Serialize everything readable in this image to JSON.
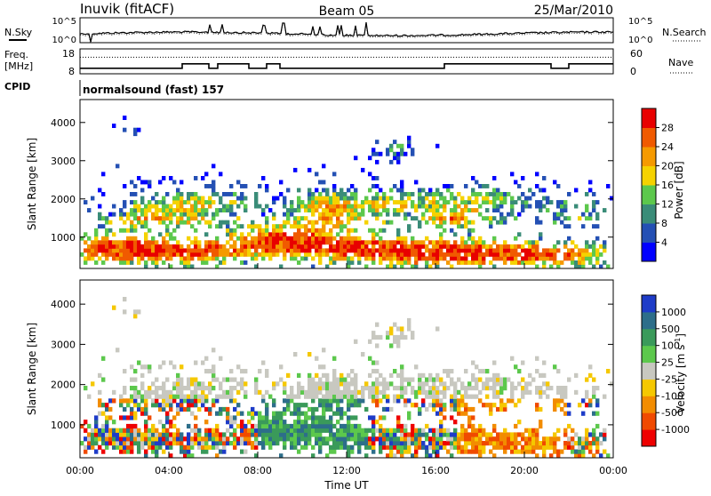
{
  "header": {
    "station": "Inuvik (fitACF)",
    "beam": "Beam 05",
    "date": "25/Mar/2010"
  },
  "colors": {
    "power": [
      "#0000ff",
      "#2450b4",
      "#3a8c78",
      "#5cc84c",
      "#f5d200",
      "#f59a00",
      "#f05a00",
      "#e80000"
    ],
    "velocity": [
      "#ee0000",
      "#f04a00",
      "#f28c00",
      "#f5c800",
      "#c8c8c0",
      "#5cc84c",
      "#3a9a5a",
      "#2d6e8a",
      "#1e3cc8"
    ],
    "bg": "#ffffff"
  },
  "chart_data": [
    {
      "type": "line",
      "panel": "noise",
      "left_label": "N.Sky",
      "right_label": "N.Search",
      "left_ticks": [
        "10^5",
        "10^0"
      ],
      "right_ticks": [
        "10^5",
        "10^0"
      ]
    },
    {
      "type": "line",
      "panel": "frequency",
      "left_label_lines": [
        "Freq.",
        "[MHz]"
      ],
      "left_ticks": [
        "18",
        "8"
      ],
      "right_label": "Nave",
      "right_ticks": [
        "60",
        "0"
      ],
      "freq_steps": [
        {
          "t0": 0.0,
          "t1": 4.6,
          "mhz": 10.2
        },
        {
          "t0": 4.6,
          "t1": 5.8,
          "mhz": 12.0
        },
        {
          "t0": 5.8,
          "t1": 6.2,
          "mhz": 10.2
        },
        {
          "t0": 6.2,
          "t1": 7.6,
          "mhz": 12.0
        },
        {
          "t0": 7.6,
          "t1": 8.4,
          "mhz": 10.2
        },
        {
          "t0": 8.4,
          "t1": 9.0,
          "mhz": 12.0
        },
        {
          "t0": 9.0,
          "t1": 16.4,
          "mhz": 10.2
        },
        {
          "t0": 16.4,
          "t1": 21.2,
          "mhz": 12.0
        },
        {
          "t0": 21.2,
          "t1": 22.0,
          "mhz": 10.2
        },
        {
          "t0": 22.0,
          "t1": 24.0,
          "mhz": 12.0
        }
      ],
      "nave_level": 40
    },
    {
      "type": "table",
      "panel": "cpid",
      "label": "CPID",
      "program": "normalsound (fast) 157"
    },
    {
      "type": "heatmap",
      "panel": "power",
      "ylabel": "Slant Range [km]",
      "y_ticks": [
        1000,
        2000,
        3000,
        4000
      ],
      "ylim": [
        180,
        4600
      ],
      "xlim": [
        0,
        24
      ],
      "colorbar_label": "Power [dB]",
      "colorbar_ticks": [
        "4",
        "8",
        "12",
        "16",
        "20",
        "24",
        "28"
      ],
      "cmin": 0,
      "cmax": 32
    },
    {
      "type": "heatmap",
      "panel": "velocity",
      "ylabel": "Slant Range [km]",
      "y_ticks": [
        1000,
        2000,
        3000,
        4000
      ],
      "ylim": [
        180,
        4600
      ],
      "xlim": [
        0,
        24
      ],
      "xlabel": "Time UT",
      "x_ticks": [
        "00:00",
        "04:00",
        "08:00",
        "12:00",
        "16:00",
        "20:00",
        "00:00"
      ],
      "colorbar_label": "Velocity [m s",
      "colorbar_label_sup": "-1",
      "colorbar_label_end": "]",
      "colorbar_ticks": [
        "-1000",
        "-500",
        "-100",
        "-25",
        "25",
        "100",
        "500",
        "1000"
      ]
    }
  ]
}
